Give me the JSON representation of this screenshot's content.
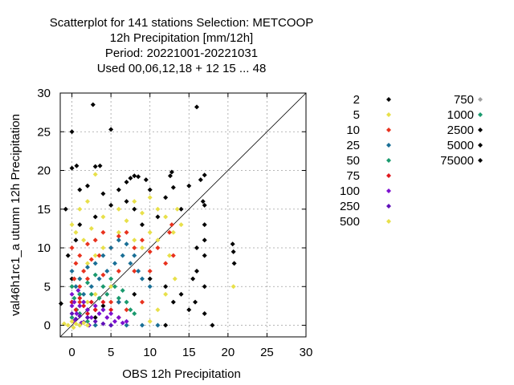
{
  "chart_data": {
    "type": "scatter",
    "title_lines": [
      "Scatterplot for  141 stations Selection: METCOOP",
      "12h Precipitation [mm/12h]",
      "Period: 20221001-20221031",
      "Used  00,06,12,18  + 12 15 ... 48"
    ],
    "xlabel": "OBS 12h Precipitation",
    "ylabel": "val46h1rc1_a utumn 12h Precipitation",
    "xlim": [
      -1.5,
      30
    ],
    "ylim": [
      -1.5,
      30
    ],
    "xticks": [
      "0",
      "5",
      "10",
      "15",
      "20",
      "25",
      "30"
    ],
    "yticks": [
      "0",
      "5",
      "10",
      "15",
      "20",
      "25",
      "30"
    ],
    "grid": true,
    "diagonal": true,
    "legend_position": "right",
    "series": [
      {
        "name": "2",
        "color": "#000000",
        "points": [
          [
            -1.4,
            2.8
          ],
          [
            0,
            25
          ],
          [
            0,
            20.3
          ],
          [
            0.6,
            20.6
          ],
          [
            2.7,
            28.5
          ],
          [
            3,
            20.5
          ],
          [
            3.6,
            20.6
          ],
          [
            5,
            25.3
          ],
          [
            7,
            18.5
          ],
          [
            7.5,
            19
          ],
          [
            8,
            19.3
          ],
          [
            8.5,
            19.2
          ],
          [
            9.5,
            18.8
          ],
          [
            12.6,
            19.3
          ],
          [
            12.8,
            19.8
          ],
          [
            16.5,
            18.8
          ],
          [
            17,
            19.4
          ],
          [
            16,
            28.2
          ],
          [
            1,
            17.5
          ],
          [
            2,
            18
          ],
          [
            4,
            17
          ],
          [
            6,
            17.5
          ],
          [
            10,
            17.5
          ],
          [
            13,
            17.8
          ],
          [
            15,
            18
          ],
          [
            17,
            15.5
          ],
          [
            17,
            13
          ],
          [
            17,
            11
          ],
          [
            17,
            9
          ],
          [
            17,
            5
          ],
          [
            17,
            1.5
          ],
          [
            20.8,
            8
          ],
          [
            20.7,
            9.5
          ],
          [
            20.6,
            10.5
          ],
          [
            15.5,
            6
          ],
          [
            15.8,
            3
          ],
          [
            16,
            10
          ],
          [
            14,
            15
          ],
          [
            12,
            16.5
          ],
          [
            11,
            14
          ],
          [
            9,
            13
          ],
          [
            8,
            15
          ],
          [
            7,
            16
          ],
          [
            5,
            15.5
          ],
          [
            3,
            14
          ],
          [
            1,
            13
          ],
          [
            0.5,
            11
          ],
          [
            -0.5,
            9
          ],
          [
            0,
            6
          ],
          [
            0,
            3
          ],
          [
            1,
            4
          ],
          [
            2,
            2
          ],
          [
            3,
            1
          ],
          [
            4,
            2.5
          ],
          [
            6,
            3
          ],
          [
            8,
            4
          ],
          [
            10,
            6
          ],
          [
            12,
            5
          ],
          [
            14,
            4
          ],
          [
            15,
            2
          ],
          [
            12,
            0
          ],
          [
            13,
            3
          ],
          [
            16.8,
            16
          ],
          [
            16,
            7
          ],
          [
            -0.8,
            15
          ],
          [
            18,
            0
          ]
        ]
      },
      {
        "name": "5",
        "color": "#e8e04a",
        "points": [
          [
            3,
            19.5
          ],
          [
            2,
            16
          ],
          [
            1,
            15
          ],
          [
            0,
            13
          ],
          [
            0.5,
            12
          ],
          [
            1.5,
            11
          ],
          [
            2.5,
            12.5
          ],
          [
            4,
            14
          ],
          [
            6,
            15
          ],
          [
            7,
            13.5
          ],
          [
            8,
            16
          ],
          [
            9,
            14.5
          ],
          [
            10,
            16.5
          ],
          [
            11,
            15
          ],
          [
            12,
            14
          ],
          [
            13,
            12
          ],
          [
            12.5,
            9
          ],
          [
            11,
            11
          ],
          [
            10,
            12
          ],
          [
            9,
            10
          ],
          [
            8,
            11
          ],
          [
            6,
            12
          ],
          [
            4,
            10
          ],
          [
            3,
            9
          ],
          [
            2,
            8
          ],
          [
            1,
            6
          ],
          [
            0,
            5
          ],
          [
            2,
            3
          ],
          [
            3,
            4
          ],
          [
            5,
            5
          ],
          [
            13.5,
            15
          ],
          [
            13.2,
            6
          ],
          [
            20.7,
            5
          ],
          [
            12,
            4
          ],
          [
            11,
            2
          ],
          [
            10,
            0.5
          ],
          [
            14,
            13
          ]
        ]
      },
      {
        "name": "10",
        "color": "#e8321e",
        "points": [
          [
            0,
            10
          ],
          [
            0.5,
            8
          ],
          [
            1,
            9
          ],
          [
            1.5,
            7
          ],
          [
            2,
            10.5
          ],
          [
            2.5,
            8.5
          ],
          [
            3,
            11
          ],
          [
            3.5,
            9
          ],
          [
            4,
            12
          ],
          [
            5,
            10
          ],
          [
            6,
            11.5
          ],
          [
            7,
            12
          ],
          [
            8,
            10
          ],
          [
            9,
            11
          ],
          [
            10,
            9.5
          ],
          [
            11,
            10
          ],
          [
            12,
            8
          ],
          [
            12.5,
            12
          ],
          [
            12.8,
            13
          ],
          [
            13,
            9
          ],
          [
            0.3,
            6
          ],
          [
            1,
            5
          ],
          [
            2,
            6
          ],
          [
            4,
            6.5
          ],
          [
            6,
            7
          ],
          [
            8,
            7
          ],
          [
            10,
            7
          ],
          [
            1,
            3
          ],
          [
            3,
            2
          ],
          [
            5,
            3
          ],
          [
            7,
            2
          ],
          [
            9,
            3
          ]
        ]
      },
      {
        "name": "25",
        "color": "#1a6f96",
        "points": [
          [
            0,
            7
          ],
          [
            0.5,
            5
          ],
          [
            1,
            6
          ],
          [
            1.5,
            4
          ],
          [
            2,
            7.5
          ],
          [
            2.5,
            5
          ],
          [
            3,
            8
          ],
          [
            3.5,
            6
          ],
          [
            4,
            9
          ],
          [
            4.5,
            7
          ],
          [
            5,
            10
          ],
          [
            5.5,
            8
          ],
          [
            6,
            11
          ],
          [
            6.5,
            9
          ],
          [
            7,
            10.5
          ],
          [
            7.5,
            8
          ],
          [
            8,
            9
          ],
          [
            8.5,
            7
          ],
          [
            9,
            6
          ],
          [
            10,
            5
          ],
          [
            6,
            3
          ],
          [
            4,
            2
          ],
          [
            2,
            1
          ],
          [
            1,
            0
          ],
          [
            3,
            0
          ],
          [
            5,
            0
          ],
          [
            7,
            0
          ],
          [
            9,
            0
          ],
          [
            11,
            0
          ]
        ]
      },
      {
        "name": "50",
        "color": "#1a9a6e",
        "points": [
          [
            0,
            5
          ],
          [
            0.3,
            3.5
          ],
          [
            0.6,
            2
          ],
          [
            1,
            4
          ],
          [
            1.5,
            3
          ],
          [
            2,
            5.5
          ],
          [
            2.5,
            4
          ],
          [
            3,
            6.5
          ],
          [
            3.5,
            3.5
          ],
          [
            4,
            5
          ],
          [
            4.5,
            4
          ],
          [
            5,
            6
          ],
          [
            5.5,
            5
          ],
          [
            6,
            3.5
          ],
          [
            6.5,
            4.5
          ],
          [
            7,
            3
          ],
          [
            7.5,
            2
          ],
          [
            8,
            1.5
          ],
          [
            0,
            1
          ],
          [
            1,
            1.5
          ],
          [
            2,
            0.5
          ]
        ]
      },
      {
        "name": "75",
        "color": "#e0181e",
        "points": [
          [
            0,
            3
          ],
          [
            0.5,
            2
          ],
          [
            1,
            3.5
          ],
          [
            1.5,
            2.5
          ],
          [
            2,
            1.5
          ],
          [
            3,
            2
          ],
          [
            4,
            3
          ],
          [
            5,
            2
          ],
          [
            6,
            1
          ],
          [
            2.5,
            3
          ]
        ]
      },
      {
        "name": "100",
        "color": "#7d10d0",
        "points": [
          [
            0,
            4
          ],
          [
            0.3,
            3
          ],
          [
            0.6,
            1.5
          ],
          [
            1,
            2.5
          ],
          [
            1.5,
            3
          ],
          [
            2,
            2
          ],
          [
            2.5,
            1
          ],
          [
            3,
            2.5
          ],
          [
            3.5,
            1.5
          ],
          [
            4,
            2
          ],
          [
            4.5,
            1
          ],
          [
            5,
            1.5
          ],
          [
            5.5,
            0.5
          ],
          [
            6,
            1
          ],
          [
            6.5,
            0.3
          ],
          [
            7,
            0.5
          ],
          [
            0,
            2.5
          ],
          [
            0.2,
            0.5
          ],
          [
            1.2,
            0.3
          ],
          [
            2.2,
            0
          ],
          [
            0.8,
            4.5
          ]
        ]
      },
      {
        "name": "250",
        "color": "#6010b8",
        "points": [
          [
            0,
            1.5
          ],
          [
            0.5,
            0.8
          ],
          [
            1,
            1.2
          ],
          [
            1.5,
            0.4
          ],
          [
            2,
            1
          ],
          [
            3,
            0.5
          ],
          [
            4,
            0.2
          ],
          [
            5,
            0
          ]
        ]
      },
      {
        "name": "500",
        "color": "#e8e04a",
        "points": [
          [
            0,
            0.5
          ],
          [
            0.5,
            0.2
          ],
          [
            1,
            0
          ],
          [
            1.5,
            0.3
          ],
          [
            2,
            0
          ],
          [
            -0.5,
            0
          ],
          [
            -1,
            0.2
          ],
          [
            0.2,
            -0.3
          ]
        ]
      },
      {
        "name": "750",
        "color": "#a0a0a0",
        "points": []
      },
      {
        "name": "1000",
        "color": "#1a9a6e",
        "points": []
      },
      {
        "name": "2500",
        "color": "#000000",
        "points": []
      },
      {
        "name": "5000",
        "color": "#000000",
        "points": []
      },
      {
        "name": "75000",
        "color": "#000000",
        "points": []
      }
    ]
  }
}
